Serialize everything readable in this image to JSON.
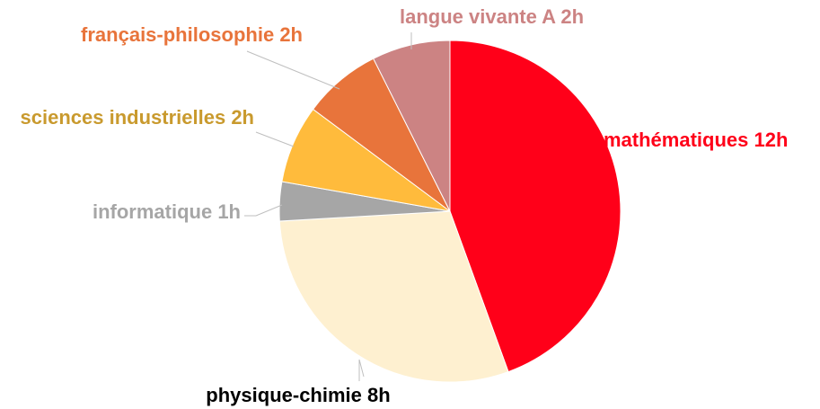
{
  "chart_data": {
    "type": "pie",
    "categories": [
      "mathématiques",
      "physique-chimie",
      "informatique",
      "sciences industrielles",
      "français-philosophie",
      "langue vivante A"
    ],
    "values": [
      12,
      8,
      1,
      2,
      2,
      2
    ],
    "value_labels": [
      "12h",
      "8h",
      "1h",
      "2h",
      "2h",
      "2h"
    ],
    "colors": [
      "#ff0019",
      "#fef0d0",
      "#a6a6a6",
      "#ffbb3c",
      "#e8743b",
      "#cc8383"
    ],
    "label_colors": [
      "#ff0019",
      "#000000",
      "#a6a6a6",
      "#c99a2e",
      "#e8743b",
      "#cc8383"
    ]
  }
}
